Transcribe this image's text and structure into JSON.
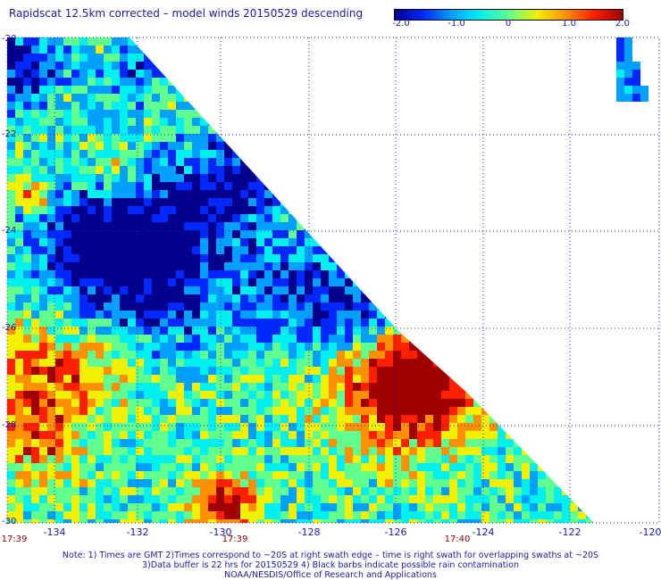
{
  "title": "Rapidscat 12.5km corrected – model winds 20150529 descending",
  "colorbar": {
    "ticks": [
      "-2.0",
      "-1.0",
      "0",
      "1.0",
      "2.0"
    ],
    "colors": [
      "#00008c",
      "#0028ff",
      "#00a0ff",
      "#00f0f0",
      "#60ff90",
      "#f0f000",
      "#ff9000",
      "#ff2000",
      "#a00000"
    ]
  },
  "map": {
    "lon_range": [
      -135,
      -120
    ],
    "lat_range": [
      -30,
      -20
    ],
    "y_tick_labels": [
      "-20",
      "-22",
      "-24",
      "-26",
      "-28",
      "-30"
    ],
    "x_tick_labels": [
      "-134",
      "-132",
      "-130",
      "-128",
      "-126",
      "-124",
      "-122",
      "-120"
    ],
    "grid": "dotted"
  },
  "times": [
    "17:39",
    "17:39",
    "17:40"
  ],
  "notes": [
    "Note: 1) Times are GMT 2)Times correspond to ~20S at right swath edge – time is right swath for overlapping swaths at ~20S",
    "3)Data buffer is 22 hrs for 20150529 4) Black barbs indicate possible rain contamination",
    "NOAA/NESDIS/Office of Research and Applications"
  ]
}
